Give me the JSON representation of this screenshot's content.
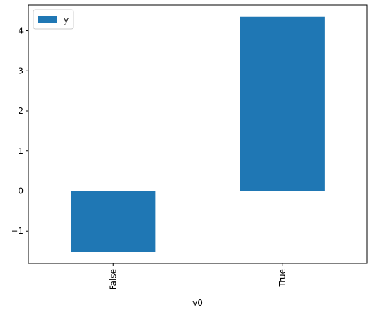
{
  "chart_data": {
    "type": "bar",
    "categories": [
      "False",
      "True"
    ],
    "series": [
      {
        "name": "y",
        "values": [
          -1.52,
          4.36
        ]
      }
    ],
    "xlabel": "v0",
    "ylabel": "",
    "ylim": [
      -1.81,
      4.65
    ],
    "yticks": [
      -1,
      0,
      1,
      2,
      3,
      4
    ],
    "ytick_labels": [
      "−1",
      "0",
      "1",
      "2",
      "3",
      "4"
    ],
    "grid": false,
    "legend_position": "top-left",
    "colors": {
      "bar": "#1f77b4"
    }
  }
}
